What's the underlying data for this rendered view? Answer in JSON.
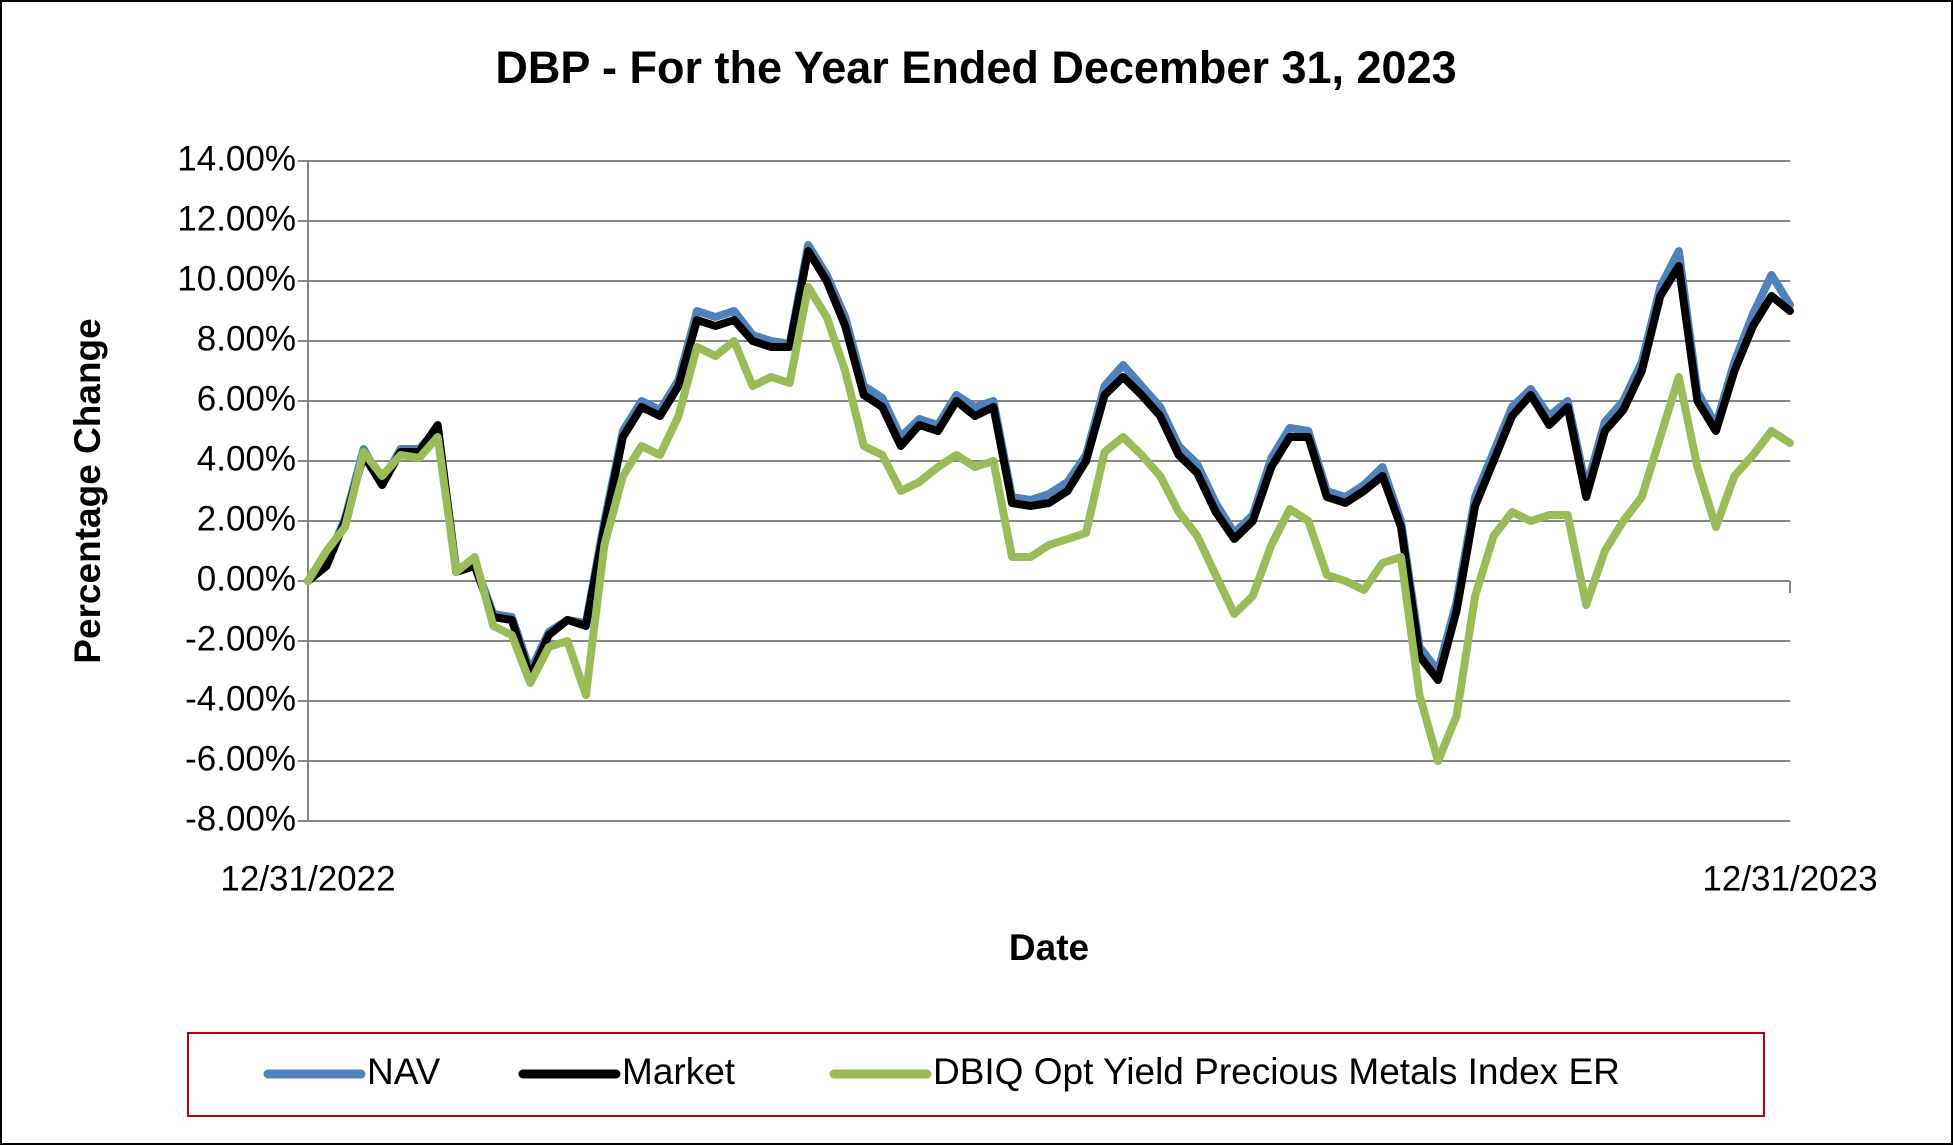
{
  "chart_data": {
    "type": "line",
    "title": "DBP - For the Year Ended December 31, 2023",
    "x_label": "Date",
    "y_label": "Percentage Change",
    "categories": [
      "12/31/2022",
      null,
      null,
      null,
      null,
      null,
      null,
      null,
      null,
      null,
      null,
      null,
      null,
      null,
      null,
      null,
      null,
      null,
      null,
      null,
      null,
      null,
      null,
      null,
      null,
      null,
      null,
      null,
      null,
      null,
      null,
      null,
      null,
      null,
      null,
      null,
      null,
      null,
      null,
      null,
      null,
      null,
      null,
      null,
      null,
      null,
      null,
      null,
      null,
      null,
      null,
      null,
      null,
      null,
      null,
      null,
      null,
      null,
      null,
      null,
      null,
      null,
      null,
      null,
      null,
      null,
      null,
      null,
      null,
      null,
      null,
      null,
      null,
      null,
      null,
      null,
      null,
      null,
      null,
      null,
      "12/31/2023"
    ],
    "series": [
      {
        "name": "NAV",
        "color": "#4f81bd",
        "values": [
          0,
          0.6,
          2.1,
          4.4,
          3.3,
          4.4,
          4.4,
          5.1,
          0.4,
          0.6,
          -1.1,
          -1.2,
          -3.0,
          -1.7,
          -1.3,
          -1.4,
          2.0,
          5.0,
          6.0,
          5.7,
          6.7,
          9.0,
          8.8,
          9.0,
          8.2,
          8.0,
          7.9,
          11.2,
          10.2,
          8.8,
          6.5,
          6.1,
          4.8,
          5.4,
          5.2,
          6.2,
          5.8,
          6.0,
          2.8,
          2.7,
          2.9,
          3.3,
          4.2,
          6.5,
          7.2,
          6.5,
          5.8,
          4.5,
          3.9,
          2.6,
          1.6,
          2.2,
          4.1,
          5.1,
          5.0,
          3.0,
          2.8,
          3.2,
          3.8,
          2.0,
          -2.2,
          -3.0,
          -0.7,
          2.8,
          4.3,
          5.8,
          6.4,
          5.5,
          6.0,
          3.1,
          5.3,
          6.0,
          7.3,
          9.8,
          11.0,
          6.3,
          5.2,
          7.3,
          8.9,
          10.2,
          9.2
        ]
      },
      {
        "name": "Market",
        "color": "#000000",
        "values": [
          0,
          0.5,
          2,
          4.2,
          3.2,
          4.3,
          4.3,
          5.2,
          0.3,
          0.5,
          -1.2,
          -1.3,
          -3.2,
          -1.8,
          -1.3,
          -1.5,
          1.8,
          4.8,
          5.8,
          5.5,
          6.5,
          8.7,
          8.5,
          8.7,
          8,
          7.8,
          7.8,
          11,
          10,
          8.5,
          6.2,
          5.8,
          4.5,
          5.2,
          5,
          6,
          5.5,
          5.8,
          2.6,
          2.5,
          2.6,
          3,
          4,
          6.2,
          6.8,
          6.2,
          5.5,
          4.2,
          3.6,
          2.3,
          1.4,
          2,
          3.8,
          4.8,
          4.8,
          2.8,
          2.6,
          3,
          3.5,
          1.8,
          -2.5,
          -3.3,
          -1,
          2.5,
          4,
          5.5,
          6.2,
          5.2,
          5.8,
          2.8,
          5,
          5.7,
          7,
          9.5,
          10.5,
          6,
          5,
          7,
          8.5,
          9.5,
          9
        ]
      },
      {
        "name": "DBIQ Opt Yield Precious Metals Index ER",
        "color": "#9bbb59",
        "values": [
          0,
          1,
          1.8,
          4.3,
          3.5,
          4.2,
          4.1,
          4.8,
          0.3,
          0.8,
          -1.5,
          -1.8,
          -3.4,
          -2.2,
          -2,
          -3.8,
          1.2,
          3.5,
          4.5,
          4.2,
          5.5,
          7.8,
          7.5,
          8,
          6.5,
          6.8,
          6.6,
          9.8,
          8.8,
          7,
          4.5,
          4.2,
          3,
          3.3,
          3.8,
          4.2,
          3.8,
          4,
          0.8,
          0.8,
          1.2,
          1.4,
          1.6,
          4.3,
          4.8,
          4.2,
          3.5,
          2.3,
          1.5,
          0.2,
          -1.1,
          -0.5,
          1.2,
          2.4,
          2,
          0.2,
          0,
          -0.3,
          0.6,
          0.8,
          -3.8,
          -6,
          -4.5,
          -0.5,
          1.5,
          2.3,
          2,
          2.2,
          2.2,
          -0.8,
          1,
          2,
          2.8,
          4.8,
          6.8,
          3.8,
          1.8,
          3.5,
          4.2,
          5,
          4.6
        ]
      }
    ],
    "ylim": [
      -8,
      14
    ],
    "yticks": [
      {
        "value": -8,
        "label": "-8.00%"
      },
      {
        "value": -6,
        "label": "-6.00%"
      },
      {
        "value": -4,
        "label": "-4.00%"
      },
      {
        "value": -2,
        "label": "-2.00%"
      },
      {
        "value": 0,
        "label": "0.00%"
      },
      {
        "value": 2,
        "label": "2.00%"
      },
      {
        "value": 4,
        "label": "4.00%"
      },
      {
        "value": 6,
        "label": "6.00%"
      },
      {
        "value": 8,
        "label": "8.00%"
      },
      {
        "value": 10,
        "label": "10.00%"
      },
      {
        "value": 12,
        "label": "12.00%"
      },
      {
        "value": 14,
        "label": "14.00%"
      }
    ],
    "grid": true,
    "legend": "bottom"
  }
}
